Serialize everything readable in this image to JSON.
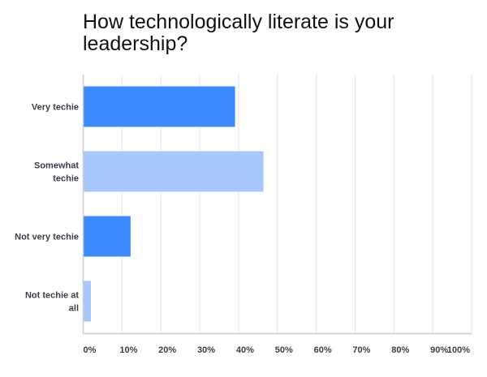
{
  "chart_data": {
    "type": "bar",
    "orientation": "horizontal",
    "title": "How technologically literate is your leadership?",
    "categories": [
      "Very techie",
      "Somewhat techie",
      "Not very techie",
      "Not techie at all"
    ],
    "category_lines": [
      [
        "Very techie"
      ],
      [
        "Somewhat",
        "techie"
      ],
      [
        "Not very techie"
      ],
      [
        "Not techie at",
        "all"
      ]
    ],
    "values": [
      39.1,
      46.4,
      12.2,
      2.0
    ],
    "colors": [
      "#3a8bff",
      "#a8c7fb",
      "#3a8bff",
      "#a8c7fb"
    ],
    "xlabel": "",
    "ylabel": "",
    "xlim": [
      0,
      100
    ],
    "xticks": [
      "0%",
      "10%",
      "20%",
      "30%",
      "40%",
      "50%",
      "60%",
      "70%",
      "80%",
      "90%",
      "100%"
    ],
    "grid": true,
    "legend": "none"
  }
}
